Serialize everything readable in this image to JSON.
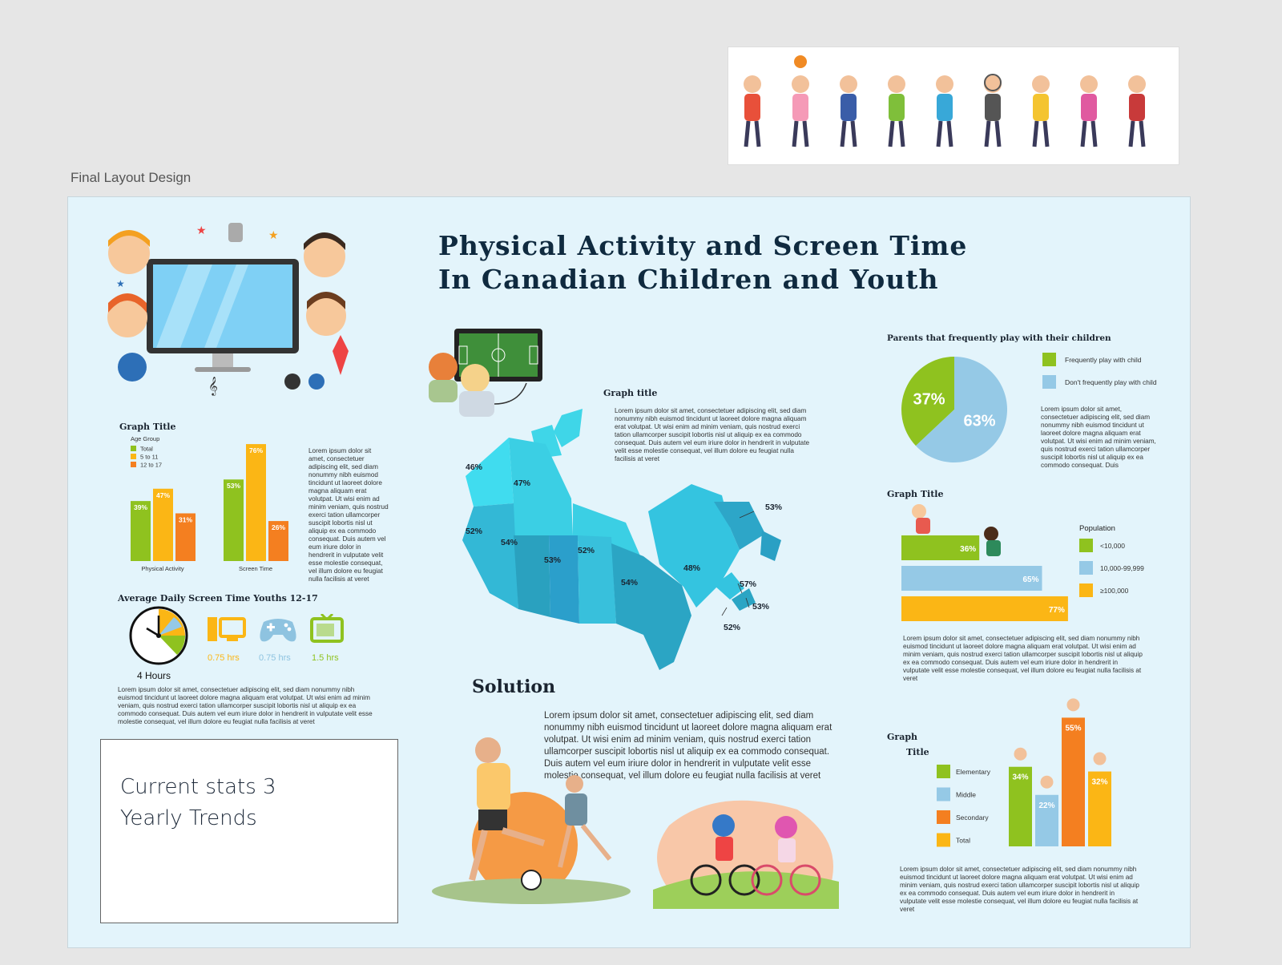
{
  "frame_label": "Final Layout Design",
  "title": {
    "line1": "Physical Activity and Screen Time",
    "line2": "In Canadian Children and Youth"
  },
  "lorem_short": "Lorem ipsum dolor sit amet, consectetuer adipiscing elit, sed diam nonummy nibh euismod tincidunt ut laoreet dolore magna aliquam erat volutpat. Ut wisi enim ad minim veniam, quis nostrud exerci tation ullamcorper suscipit lobortis nisl ut aliquip ex ea commodo consequat. Duis",
  "lorem_long": "Lorem ipsum dolor sit amet, consectetuer adipiscing elit, sed diam nonummy nibh euismod tincidunt ut laoreet dolore magna aliquam erat volutpat. Ut wisi enim ad minim veniam, quis nostrud exerci tation ullamcorper suscipit lobortis nisl ut aliquip ex ea commodo consequat. Duis autem vel eum iriure dolor in hendrerit in vulputate velit esse molestie consequat, vel illum dolore eu feugiat nulla facilisis at veret",
  "age_chart": {
    "title": "Graph Title",
    "legend_title": "Age Group",
    "legend": [
      "Total",
      "5 to 11",
      "12 to 17"
    ],
    "colors": [
      "#8fc21f",
      "#fbb615",
      "#f47f20"
    ]
  },
  "screen_time": {
    "title": "Average Daily Screen Time Youths 12-17",
    "clock_label": "4 Hours",
    "devices": [
      {
        "icon": "computer-icon",
        "label": "0.75 hrs",
        "color": "#fbb615"
      },
      {
        "icon": "gamepad-icon",
        "label": "0.75 hrs",
        "color": "#8ec3e0"
      },
      {
        "icon": "tv-icon",
        "label": "1.5 hrs",
        "color": "#8fc21f"
      }
    ]
  },
  "stats_box": {
    "line1": "Current stats 3",
    "line2": "Yearly Trends"
  },
  "map": {
    "title": "Graph title",
    "labels": [
      "46%",
      "47%",
      "52%",
      "54%",
      "53%",
      "52%",
      "54%",
      "48%",
      "53%",
      "57%",
      "53%",
      "52%"
    ]
  },
  "solution": {
    "title": "Solution"
  },
  "parents": {
    "title": "Parents that frequently play with their children",
    "legend": [
      "Frequently play with child",
      "Don't frequently play with child"
    ],
    "colors": [
      "#8fc21f",
      "#95c9e6"
    ]
  },
  "population": {
    "title": "Graph Title",
    "legend_title": "Population",
    "legend": [
      "<10,000",
      "10,000-99,999",
      "≥100,000"
    ],
    "colors": [
      "#8fc21f",
      "#95c9e6",
      "#fbb615"
    ]
  },
  "school": {
    "title_line1": "Graph",
    "title_line2": "Title",
    "legend": [
      "Elementary",
      "Middle",
      "Secondary",
      "Total"
    ],
    "colors": [
      "#8fc21f",
      "#95c9e6",
      "#f47f20",
      "#fbb615"
    ]
  },
  "chart_data": [
    {
      "type": "bar",
      "title": "Graph Title",
      "categories": [
        "Physical Activity",
        "Screen Time"
      ],
      "series": [
        {
          "name": "Total",
          "values": [
            39,
            53
          ]
        },
        {
          "name": "5 to 11",
          "values": [
            47,
            76
          ]
        },
        {
          "name": "12 to 17",
          "values": [
            31,
            26
          ]
        }
      ],
      "ylim": [
        0,
        100
      ]
    },
    {
      "type": "pie",
      "title": "Parents that frequently play with their children",
      "categories": [
        "Frequently play with child",
        "Don't frequently play with child"
      ],
      "values": [
        37,
        63
      ]
    },
    {
      "type": "bar",
      "title": "Graph Title",
      "orientation": "horizontal",
      "categories": [
        "<10,000",
        "10,000-99,999",
        "≥100,000"
      ],
      "values": [
        36,
        65,
        77
      ],
      "xlim": [
        0,
        100
      ]
    },
    {
      "type": "bar",
      "categories": [
        "Elementary",
        "Middle",
        "Secondary",
        "Total"
      ],
      "values": [
        34,
        22,
        55,
        32
      ],
      "ylim": [
        0,
        100
      ]
    }
  ]
}
